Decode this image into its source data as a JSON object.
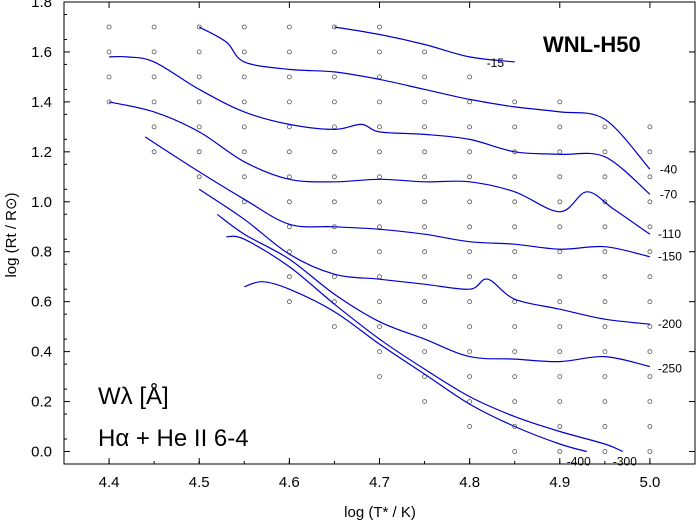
{
  "chart_data": {
    "type": "line",
    "title": "WNL-H50",
    "xlabel": "log (T* / K)",
    "ylabel": "log (Rt / R⊙)",
    "annotation": {
      "line1": "Wλ [Å]",
      "line2": "Hα + He II 6-4"
    },
    "xlim": [
      4.35,
      5.05
    ],
    "ylim": [
      -0.05,
      1.8
    ],
    "xticks": [
      "4.4",
      "4.5",
      "4.6",
      "4.7",
      "4.8",
      "4.9",
      "5.0"
    ],
    "yticks": [
      "0.0",
      "0.2",
      "0.4",
      "0.6",
      "0.8",
      "1.0",
      "1.2",
      "1.4",
      "1.6",
      "1.8"
    ],
    "grid": false,
    "line_color": "#0000cc",
    "series": [
      {
        "name": "-15",
        "x": [
          4.65,
          4.7,
          4.75,
          4.8,
          4.85
        ],
        "y": [
          1.7,
          1.67,
          1.63,
          1.58,
          1.56
        ]
      },
      {
        "name": "-40",
        "x": [
          4.5,
          4.53,
          4.55,
          4.6,
          4.65,
          4.7,
          4.75,
          4.8,
          4.85,
          4.9,
          4.95,
          5.0
        ],
        "y": [
          1.7,
          1.64,
          1.56,
          1.53,
          1.52,
          1.49,
          1.45,
          1.41,
          1.38,
          1.36,
          1.33,
          1.13
        ]
      },
      {
        "name": "-70",
        "x": [
          4.4,
          4.42,
          4.45,
          4.5,
          4.55,
          4.6,
          4.65,
          4.68,
          4.7,
          4.75,
          4.8,
          4.85,
          4.9,
          4.95,
          5.0
        ],
        "y": [
          1.58,
          1.58,
          1.56,
          1.45,
          1.36,
          1.31,
          1.29,
          1.31,
          1.28,
          1.27,
          1.25,
          1.2,
          1.19,
          1.18,
          1.03
        ]
      },
      {
        "name": "-110",
        "x": [
          4.4,
          4.45,
          4.5,
          4.55,
          4.6,
          4.65,
          4.7,
          4.75,
          4.8,
          4.85,
          4.9,
          4.93,
          4.96,
          5.0
        ],
        "y": [
          1.4,
          1.36,
          1.28,
          1.16,
          1.09,
          1.08,
          1.09,
          1.08,
          1.08,
          1.04,
          0.96,
          1.04,
          0.97,
          0.87
        ]
      },
      {
        "name": "-150",
        "x": [
          4.44,
          4.5,
          4.55,
          4.6,
          4.65,
          4.7,
          4.75,
          4.8,
          4.85,
          4.9,
          4.95,
          5.0
        ],
        "y": [
          1.26,
          1.12,
          1.01,
          0.91,
          0.9,
          0.89,
          0.87,
          0.84,
          0.83,
          0.81,
          0.82,
          0.78
        ]
      },
      {
        "name": "-200",
        "x": [
          4.5,
          4.55,
          4.6,
          4.65,
          4.7,
          4.75,
          4.8,
          4.82,
          4.85,
          4.9,
          4.95,
          5.0
        ],
        "y": [
          1.05,
          0.93,
          0.79,
          0.71,
          0.69,
          0.67,
          0.65,
          0.69,
          0.61,
          0.57,
          0.53,
          0.51
        ]
      },
      {
        "name": "-250",
        "x": [
          4.52,
          4.55,
          4.6,
          4.65,
          4.7,
          4.75,
          4.8,
          4.85,
          4.9,
          4.95,
          5.0
        ],
        "y": [
          0.95,
          0.87,
          0.77,
          0.63,
          0.52,
          0.45,
          0.38,
          0.37,
          0.36,
          0.38,
          0.34
        ]
      },
      {
        "name": "-300",
        "x": [
          4.53,
          4.55,
          4.6,
          4.65,
          4.7,
          4.75,
          4.8,
          4.85,
          4.9,
          4.95,
          4.97
        ],
        "y": [
          0.86,
          0.85,
          0.74,
          0.59,
          0.45,
          0.33,
          0.22,
          0.14,
          0.08,
          0.03,
          0.0
        ]
      },
      {
        "name": "-400",
        "x": [
          4.55,
          4.57,
          4.6,
          4.65,
          4.7,
          4.75,
          4.8,
          4.85,
          4.9,
          4.93
        ],
        "y": [
          0.66,
          0.68,
          0.65,
          0.56,
          0.43,
          0.31,
          0.19,
          0.1,
          0.03,
          0.0
        ]
      }
    ],
    "model_grid": [
      [
        4.4,
        [
          1.4,
          1.5,
          1.6,
          1.7
        ]
      ],
      [
        4.45,
        [
          1.2,
          1.3,
          1.4,
          1.5,
          1.6,
          1.7
        ]
      ],
      [
        4.5,
        [
          1.1,
          1.2,
          1.3,
          1.4,
          1.5,
          1.6,
          1.7
        ]
      ],
      [
        4.55,
        [
          1.0,
          1.1,
          1.2,
          1.3,
          1.4,
          1.5,
          1.6,
          1.7
        ]
      ],
      [
        4.6,
        [
          0.6,
          0.7,
          0.8,
          0.9,
          1.0,
          1.1,
          1.2,
          1.3,
          1.4,
          1.5,
          1.6,
          1.7
        ]
      ],
      [
        4.65,
        [
          0.5,
          0.6,
          0.7,
          0.8,
          0.9,
          1.0,
          1.1,
          1.2,
          1.3,
          1.4,
          1.5,
          1.6,
          1.7
        ]
      ],
      [
        4.7,
        [
          0.3,
          0.4,
          0.5,
          0.6,
          0.7,
          0.8,
          0.9,
          1.0,
          1.1,
          1.2,
          1.3,
          1.4,
          1.5,
          1.6,
          1.7
        ]
      ],
      [
        4.75,
        [
          0.2,
          0.3,
          0.4,
          0.5,
          0.6,
          0.7,
          0.8,
          0.9,
          1.0,
          1.1,
          1.2,
          1.3,
          1.4,
          1.5,
          1.6
        ]
      ],
      [
        4.8,
        [
          0.1,
          0.2,
          0.3,
          0.4,
          0.5,
          0.6,
          0.7,
          0.8,
          0.9,
          1.0,
          1.1,
          1.2,
          1.3,
          1.4,
          1.5
        ]
      ],
      [
        4.85,
        [
          0.0,
          0.1,
          0.2,
          0.3,
          0.4,
          0.5,
          0.6,
          0.7,
          0.8,
          0.9,
          1.0,
          1.1,
          1.2,
          1.3,
          1.4
        ]
      ],
      [
        4.9,
        [
          0.0,
          0.1,
          0.2,
          0.3,
          0.4,
          0.5,
          0.6,
          0.7,
          0.8,
          0.9,
          1.0,
          1.1,
          1.2,
          1.3,
          1.4
        ]
      ],
      [
        4.95,
        [
          0.0,
          0.1,
          0.2,
          0.3,
          0.4,
          0.5,
          0.6,
          0.7,
          0.8,
          0.9,
          1.0,
          1.1,
          1.2,
          1.3
        ]
      ],
      [
        5.0,
        [
          0.0,
          0.1,
          0.2,
          0.3,
          0.4,
          0.5,
          0.6,
          0.7,
          0.8,
          0.9,
          1.0,
          1.1,
          1.2,
          1.3
        ]
      ]
    ]
  }
}
